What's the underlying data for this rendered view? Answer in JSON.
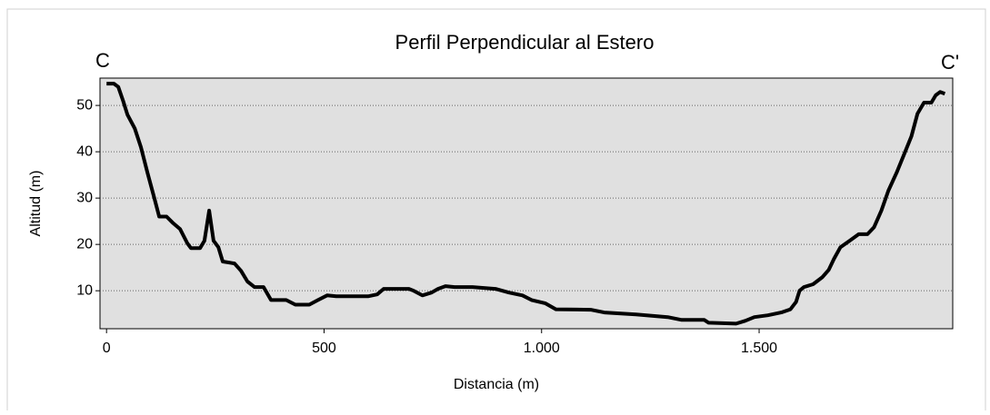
{
  "chart_data": {
    "type": "line",
    "title": "Perfil Perpendicular al Estero",
    "xlabel": "Distancia (m)",
    "ylabel": "Altitud (m)",
    "annotations": [
      "C",
      "C'"
    ],
    "x": [
      0,
      17,
      27,
      38,
      48,
      65,
      79,
      94,
      111,
      121,
      138,
      152,
      169,
      186,
      194,
      215,
      225,
      236,
      246,
      257,
      267,
      294,
      309,
      324,
      340,
      361,
      378,
      413,
      434,
      466,
      486,
      507,
      528,
      601,
      622,
      637,
      695,
      706,
      726,
      747,
      762,
      779,
      800,
      841,
      894,
      925,
      956,
      977,
      1008,
      1033,
      1113,
      1144,
      1217,
      1290,
      1322,
      1374,
      1384,
      1447,
      1468,
      1489,
      1520,
      1551,
      1572,
      1585,
      1593,
      1603,
      1624,
      1645,
      1660,
      1672,
      1687,
      1708,
      1729,
      1749,
      1764,
      1781,
      1797,
      1816,
      1833,
      1850,
      1864,
      1879,
      1896,
      1906,
      1916,
      1927
    ],
    "series": [
      {
        "name": "Altitud",
        "color": "#000000",
        "values": [
          54.7,
          54.7,
          54,
          51,
          48,
          45,
          41,
          35.5,
          29.6,
          26,
          26,
          24.7,
          23.3,
          20.2,
          19.2,
          19.2,
          20.8,
          27.3,
          20.8,
          19.4,
          16.3,
          15.9,
          14.3,
          12,
          10.8,
          10.8,
          8,
          8,
          7,
          7,
          8,
          9,
          8.8,
          8.8,
          9.2,
          10.4,
          10.4,
          10,
          9,
          9.6,
          10.4,
          11,
          10.8,
          10.8,
          10.4,
          9.6,
          9,
          8,
          7.3,
          6,
          5.9,
          5.3,
          4.9,
          4.3,
          3.7,
          3.7,
          3.1,
          2.9,
          3.5,
          4.3,
          4.7,
          5.3,
          6,
          7.6,
          10,
          10.8,
          11.4,
          12.9,
          14.5,
          16.9,
          19.4,
          20.8,
          22.2,
          22.2,
          23.7,
          27.3,
          31.6,
          35.5,
          39.4,
          43.3,
          48.2,
          50.6,
          50.6,
          52.2,
          52.9,
          52.5
        ]
      }
    ],
    "xlim": [
      -15,
      1945
    ],
    "ylim": [
      1.8,
      55.9
    ],
    "xticks": [
      0,
      500,
      {
        "value": 1000,
        "label": "1.000"
      },
      {
        "value": 1500,
        "label": "1.500"
      }
    ],
    "yticks": [
      10,
      20,
      30,
      40,
      50
    ],
    "grid": true,
    "plot_background": "#e0e0e0"
  }
}
